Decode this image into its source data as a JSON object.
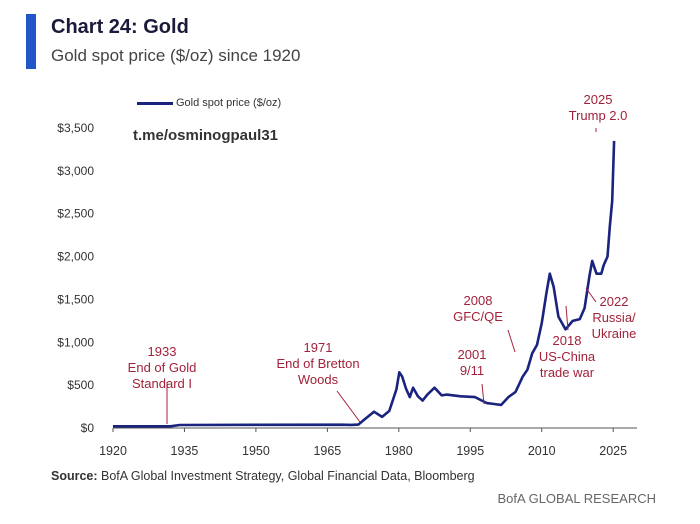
{
  "header": {
    "title": "Chart 24: Gold",
    "subtitle": "Gold spot price ($/oz) since 1920"
  },
  "watermark": "t.me/osminogpaul31",
  "footer": {
    "source_label": "Source:",
    "source_text": " BofA Global Investment Strategy, Global Financial Data, Bloomberg",
    "brand": "BofA GLOBAL RESEARCH"
  },
  "colors": {
    "accent": "#1f56c8",
    "series": "#1a237e",
    "annotation": "#a2223a"
  },
  "chart_data": {
    "type": "line",
    "title": "Gold spot price ($/oz) since 1920",
    "xlabel": "",
    "ylabel": "",
    "xlim": [
      1920,
      2030
    ],
    "ylim": [
      0,
      3500
    ],
    "x_ticks": [
      1920,
      1935,
      1950,
      1965,
      1980,
      1995,
      2010,
      2025
    ],
    "y_ticks": [
      0,
      500,
      1000,
      1500,
      2000,
      2500,
      3000,
      3500
    ],
    "y_tick_labels": [
      "$0",
      "$500",
      "$1,000",
      "$1,500",
      "$2,000",
      "$2,500",
      "$3,000",
      "$3,500"
    ],
    "legend": [
      "Gold spot price ($/oz)"
    ],
    "legend_position": "top-left",
    "grid": false,
    "series": [
      {
        "name": "Gold spot price ($/oz)",
        "x": [
          1920,
          1932,
          1934,
          1968,
          1970,
          1971.5,
          1973,
          1974.8,
          1976.5,
          1978,
          1979.5,
          1980.1,
          1980.7,
          1981.5,
          1982.3,
          1983,
          1984,
          1985,
          1986,
          1987.5,
          1989,
          1990,
          1993,
          1996,
          1998.5,
          2000,
          2001.5,
          2003,
          2004.5,
          2006,
          2007,
          2008,
          2009,
          2010,
          2011,
          2011.7,
          2012.5,
          2013.5,
          2015,
          2016.5,
          2018,
          2019,
          2020,
          2020.6,
          2021.5,
          2022.5,
          2023,
          2023.8,
          2024.3,
          2024.8,
          2025.2
        ],
        "y": [
          20,
          20,
          35,
          38,
          36,
          40,
          110,
          190,
          130,
          200,
          450,
          650,
          600,
          460,
          360,
          470,
          370,
          320,
          390,
          470,
          380,
          390,
          370,
          360,
          290,
          280,
          270,
          360,
          420,
          600,
          680,
          870,
          970,
          1220,
          1580,
          1800,
          1650,
          1300,
          1150,
          1250,
          1270,
          1400,
          1770,
          1950,
          1800,
          1800,
          1900,
          2000,
          2350,
          2650,
          3350
        ]
      }
    ],
    "annotations": [
      {
        "text": [
          "1933",
          "End of Gold",
          "Standard I"
        ],
        "x": 1933,
        "y": 0
      },
      {
        "text": [
          "1971",
          "End of Bretton",
          "Woods"
        ],
        "x": 1971,
        "y": 40
      },
      {
        "text": [
          "2001",
          "9/11"
        ],
        "x": 2001,
        "y": 270
      },
      {
        "text": [
          "2008",
          "GFC/QE"
        ],
        "x": 2008,
        "y": 870
      },
      {
        "text": [
          "2018",
          "US-China",
          "trade war"
        ],
        "x": 2018,
        "y": 1270
      },
      {
        "text": [
          "2022",
          "Russia/",
          "Ukraine"
        ],
        "x": 2022,
        "y": 1800
      },
      {
        "text": [
          "2025",
          "Trump 2.0"
        ],
        "x": 2025,
        "y": 3350
      }
    ]
  }
}
